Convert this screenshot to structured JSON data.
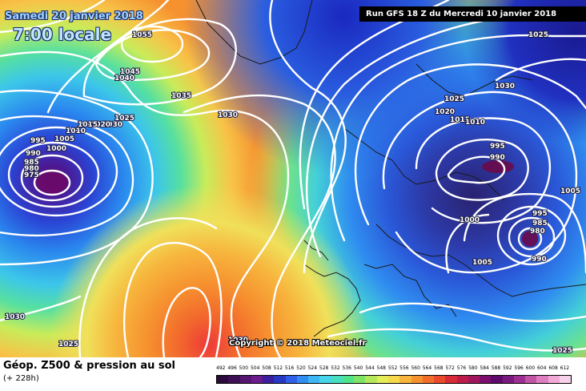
{
  "header": {
    "date": "Samedi 20 janvier 2018",
    "local_time": "7:00 locale",
    "run": "Run GFS 18 Z du Mercredi 10 janvier 2018"
  },
  "copyright": "Copyright © 2018 Meteociel.fr",
  "footer": {
    "title": "Géop. Z500 & pression au sol",
    "subtitle": "(+ 228h)"
  },
  "pressure_labels": [
    {
      "text": "1055"
    },
    {
      "text": "1045"
    },
    {
      "text": "1040"
    },
    {
      "text": "1035"
    },
    {
      "text": "1025"
    },
    {
      "text": "1030"
    },
    {
      "text": "1020"
    },
    {
      "text": "1015"
    },
    {
      "text": "1010"
    },
    {
      "text": "1005"
    },
    {
      "text": "1000"
    },
    {
      "text": "995"
    },
    {
      "text": "990"
    },
    {
      "text": "985"
    },
    {
      "text": "980"
    },
    {
      "text": "975"
    },
    {
      "text": "1030"
    },
    {
      "text": "1025"
    },
    {
      "text": "1030"
    },
    {
      "text": "1025"
    },
    {
      "text": "1020"
    },
    {
      "text": "1015"
    },
    {
      "text": "1010"
    },
    {
      "text": "995"
    },
    {
      "text": "990"
    },
    {
      "text": "1005"
    },
    {
      "text": "1000"
    },
    {
      "text": "995"
    },
    {
      "text": "985"
    },
    {
      "text": "980"
    },
    {
      "text": "990"
    },
    {
      "text": "1005"
    },
    {
      "text": "1030"
    },
    {
      "text": "1025"
    },
    {
      "text": "1030"
    },
    {
      "text": "1025"
    }
  ],
  "legend": {
    "labels": [
      "492",
      "496",
      "500",
      "504",
      "508",
      "512",
      "516",
      "520",
      "524",
      "528",
      "532",
      "536",
      "540",
      "544",
      "548",
      "552",
      "556",
      "560",
      "564",
      "568",
      "572",
      "576",
      "580",
      "584",
      "588",
      "592",
      "596",
      "600",
      "604",
      "608",
      "612"
    ],
    "colors": [
      "#2a0a3a",
      "#3d0f55",
      "#551570",
      "#6a1b8c",
      "#3b1d9e",
      "#2638c4",
      "#2f5ee8",
      "#2f8cf0",
      "#3cb6f5",
      "#46d5e8",
      "#46e0c0",
      "#4fe38a",
      "#7fe463",
      "#b4e85a",
      "#e4ec56",
      "#f5d94a",
      "#f7b53d",
      "#f6912f",
      "#f26d2a",
      "#ea4a2c",
      "#d82a37",
      "#bd1b4b",
      "#a0155e",
      "#7c0e6e",
      "#5e0a6c",
      "#7a1a7f",
      "#9c2f91",
      "#c154a6",
      "#de7ec0",
      "#f0a8d6",
      "#f7d0ea"
    ]
  }
}
